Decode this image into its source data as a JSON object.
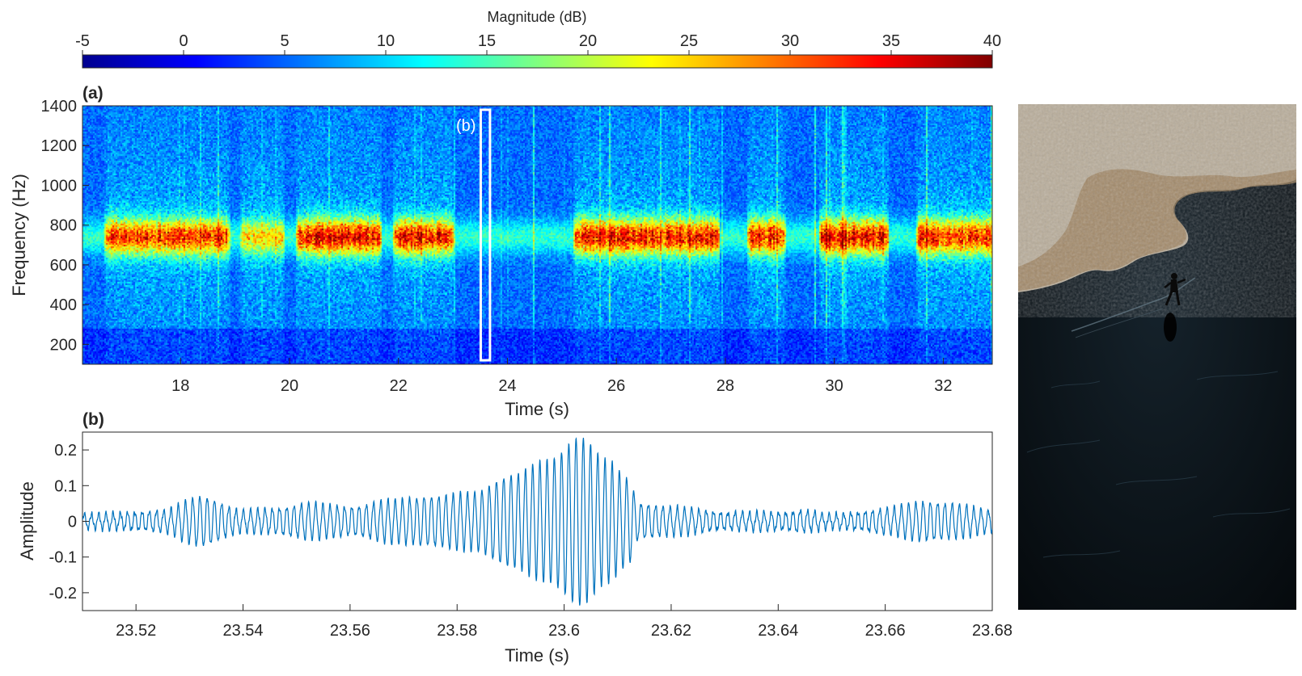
{
  "colorbar": {
    "label": "Magnitude (dB)",
    "range": [
      -5,
      40
    ],
    "ticks": [
      -5,
      0,
      5,
      10,
      15,
      20,
      25,
      30,
      35,
      40
    ],
    "colormap": "jet"
  },
  "chart_data": [
    {
      "type": "heatmap",
      "panel_label": "(a)",
      "xlabel": "Time (s)",
      "ylabel": "Frequency (Hz)",
      "xlim": [
        16.2,
        32.9
      ],
      "ylim": [
        100,
        1400
      ],
      "xticks": [
        18,
        20,
        22,
        24,
        26,
        28,
        30,
        32
      ],
      "yticks": [
        200,
        400,
        600,
        800,
        1000,
        1200,
        1400
      ],
      "grid": false,
      "colorbar_label": "Magnitude (dB)",
      "clim": [
        -5,
        40
      ],
      "colormap": "jet",
      "dominant_band_hz": [
        650,
        820
      ],
      "band_center_hz": 740,
      "active_segments": [
        {
          "t_start": 16.6,
          "t_end": 18.9,
          "peak_db": 35
        },
        {
          "t_start": 19.1,
          "t_end": 19.9,
          "peak_db": 22
        },
        {
          "t_start": 20.1,
          "t_end": 21.7,
          "peak_db": 38
        },
        {
          "t_start": 21.9,
          "t_end": 23.0,
          "peak_db": 37
        },
        {
          "t_start": 25.2,
          "t_end": 27.9,
          "peak_db": 36
        },
        {
          "t_start": 28.4,
          "t_end": 29.1,
          "peak_db": 37
        },
        {
          "t_start": 29.7,
          "t_end": 31.0,
          "peak_db": 37
        },
        {
          "t_start": 31.5,
          "t_end": 32.9,
          "peak_db": 35
        }
      ],
      "annotation": {
        "label": "(b)",
        "t_start": 23.51,
        "t_end": 23.68,
        "f_range": [
          120,
          1380
        ]
      }
    },
    {
      "type": "line",
      "panel_label": "(b)",
      "xlabel": "Time (s)",
      "ylabel": "Amplitude",
      "xlim": [
        23.51,
        23.68
      ],
      "ylim": [
        -0.25,
        0.25
      ],
      "xticks": [
        23.52,
        23.54,
        23.56,
        23.58,
        23.6,
        23.62,
        23.64,
        23.66,
        23.68
      ],
      "yticks": [
        -0.2,
        -0.1,
        0,
        0.1,
        0.2
      ],
      "grid": false,
      "color": "#0072BD",
      "carrier_frequency_hz": 740,
      "envelope": {
        "t": [
          23.51,
          23.52,
          23.525,
          23.532,
          23.54,
          23.545,
          23.553,
          23.56,
          23.568,
          23.575,
          23.583,
          23.59,
          23.597,
          23.603,
          23.608,
          23.612,
          23.614,
          23.62,
          23.63,
          23.64,
          23.645,
          23.65,
          23.655,
          23.66,
          23.667,
          23.672,
          23.68
        ],
        "amplitude": [
          0.02,
          0.025,
          0.03,
          0.07,
          0.03,
          0.035,
          0.05,
          0.04,
          0.06,
          0.07,
          0.08,
          0.13,
          0.17,
          0.24,
          0.17,
          0.12,
          0.05,
          0.04,
          0.025,
          0.025,
          0.03,
          0.02,
          0.025,
          0.035,
          0.055,
          0.05,
          0.03
        ]
      }
    }
  ],
  "photo": {
    "caption": "",
    "colors": {
      "shore": "#b9ad9a",
      "ice": "#0b1217",
      "skater": "#000000"
    }
  }
}
